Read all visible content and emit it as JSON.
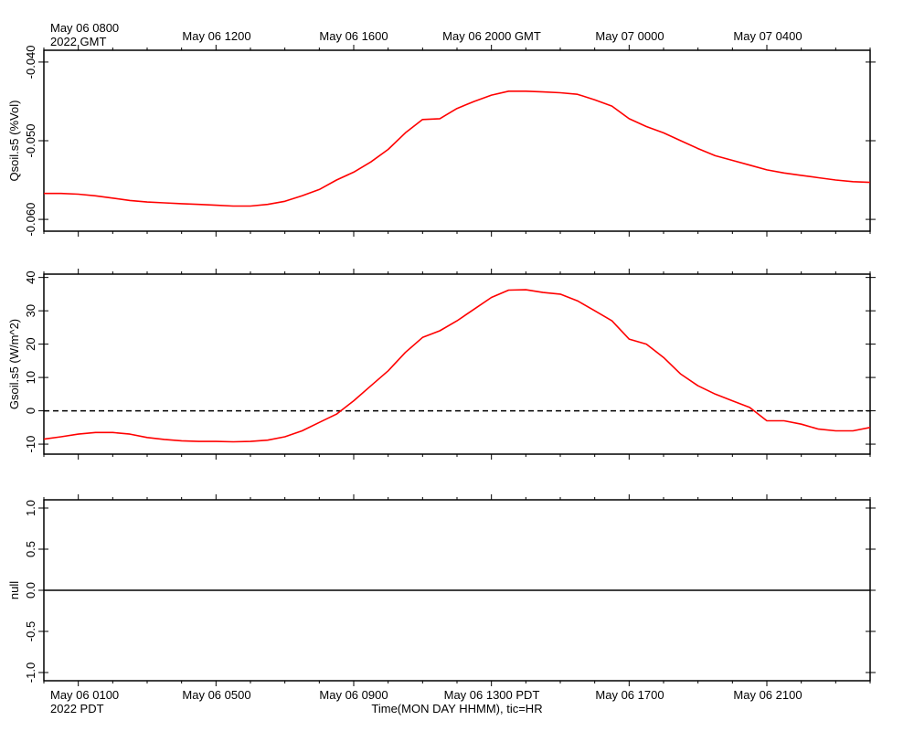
{
  "top_time_labels": {
    "first": "May 06 0800",
    "first_year": "2022 GMT",
    "ticks": [
      "May 06 1200",
      "May 06 1600",
      "May 06 2000 GMT",
      "May 07 0000",
      "May 07 0400"
    ]
  },
  "bottom_time_labels": {
    "first": "May 06 0100",
    "first_year": "2022 PDT",
    "ticks": [
      "May 06 0500",
      "May 06 0900",
      "May 06 1300 PDT",
      "May 06 1700",
      "May 06 2100"
    ],
    "axis_title": "Time(MON DAY HHMM), tic=HR"
  },
  "colors": {
    "series": "#ff0000",
    "axis": "#000000",
    "zero_line": "#000000"
  },
  "chart_data": [
    {
      "type": "line",
      "ylabel": "Qsoil.s5 (%Vol)",
      "ylim": [
        -0.0615,
        -0.0385
      ],
      "yticks": [
        -0.04,
        -0.05,
        -0.06
      ],
      "ytick_labels": [
        "-0.040",
        "-0.050",
        "-0.060"
      ],
      "xlim": [
        0,
        24
      ],
      "x_unit": "hours after May 06 0000 PDT",
      "x": [
        0,
        0.5,
        1,
        1.5,
        2,
        2.5,
        3,
        3.5,
        4,
        4.5,
        5,
        5.5,
        6,
        6.5,
        7,
        7.5,
        8,
        8.5,
        9,
        9.5,
        10,
        10.5,
        11,
        11.5,
        12,
        12.5,
        13,
        13.5,
        14,
        14.5,
        15,
        15.5,
        16,
        16.5,
        17,
        17.5,
        18,
        18.5,
        19,
        19.5,
        20,
        20.5,
        21,
        21.5,
        22,
        22.5,
        23,
        23.5,
        24
      ],
      "series": [
        {
          "values": [
            -0.0567,
            -0.0567,
            -0.0568,
            -0.057,
            -0.0573,
            -0.0576,
            -0.0578,
            -0.0579,
            -0.058,
            -0.0581,
            -0.0582,
            -0.0583,
            -0.0583,
            -0.0581,
            -0.0577,
            -0.057,
            -0.0562,
            -0.055,
            -0.054,
            -0.0527,
            -0.0511,
            -0.049,
            -0.0473,
            -0.0472,
            -0.0459,
            -0.045,
            -0.0442,
            -0.0437,
            -0.0437,
            -0.0438,
            -0.0439,
            -0.0441,
            -0.0448,
            -0.0456,
            -0.0472,
            -0.0482,
            -0.049,
            -0.05,
            -0.051,
            -0.0519,
            -0.0525,
            -0.0531,
            -0.0537,
            -0.0541,
            -0.0544,
            -0.0547,
            -0.055,
            -0.0552,
            -0.0553
          ]
        }
      ]
    },
    {
      "type": "line",
      "ylabel": "Gsoil.s5 (W/m^2)",
      "ylim": [
        -13,
        41
      ],
      "yticks": [
        40,
        30,
        20,
        10,
        0,
        -10
      ],
      "ytick_labels": [
        "40",
        "30",
        "20",
        "10",
        "0",
        "-10"
      ],
      "reference_line": {
        "y": 0,
        "style": "dashed"
      },
      "xlim": [
        0,
        24
      ],
      "x_unit": "hours after May 06 0000 PDT",
      "x": [
        0,
        0.5,
        1,
        1.5,
        2,
        2.5,
        3,
        3.5,
        4,
        4.5,
        5,
        5.5,
        6,
        6.5,
        7,
        7.5,
        8,
        8.5,
        9,
        9.5,
        10,
        10.5,
        11,
        11.5,
        12,
        12.5,
        13,
        13.5,
        14,
        14.5,
        15,
        15.5,
        16,
        16.5,
        17,
        17.5,
        18,
        18.5,
        19,
        19.5,
        20,
        20.5,
        21,
        21.5,
        22,
        22.5,
        23,
        23.5,
        24
      ],
      "series": [
        {
          "values": [
            -8.5,
            -7.8,
            -7.0,
            -6.5,
            -6.5,
            -7.0,
            -8.0,
            -8.6,
            -9.0,
            -9.2,
            -9.2,
            -9.3,
            -9.2,
            -8.8,
            -7.8,
            -6.0,
            -3.5,
            -1.0,
            3.0,
            7.5,
            12.0,
            17.5,
            22.0,
            24.0,
            27.0,
            30.5,
            34.0,
            36.2,
            36.3,
            35.5,
            35.0,
            33.0,
            30.0,
            27.0,
            21.5,
            20.0,
            16.0,
            11.0,
            7.5,
            5.0,
            3.0,
            1.0,
            -3.0,
            -3.0,
            -4.0,
            -5.5,
            -6.0,
            -6.0,
            -5.0
          ]
        }
      ]
    },
    {
      "type": "line",
      "ylabel": "null",
      "ylim": [
        -1.1,
        1.1
      ],
      "yticks": [
        1.0,
        0.5,
        0.0,
        -0.5,
        -1.0
      ],
      "ytick_labels": [
        "1.0",
        "0.5",
        "0.0",
        "-0.5",
        "-1.0"
      ],
      "xlim": [
        0,
        24
      ],
      "x_unit": "hours after May 06 0000 PDT",
      "x": [
        0,
        24
      ],
      "series": [
        {
          "values": [
            0,
            0
          ]
        }
      ]
    }
  ]
}
